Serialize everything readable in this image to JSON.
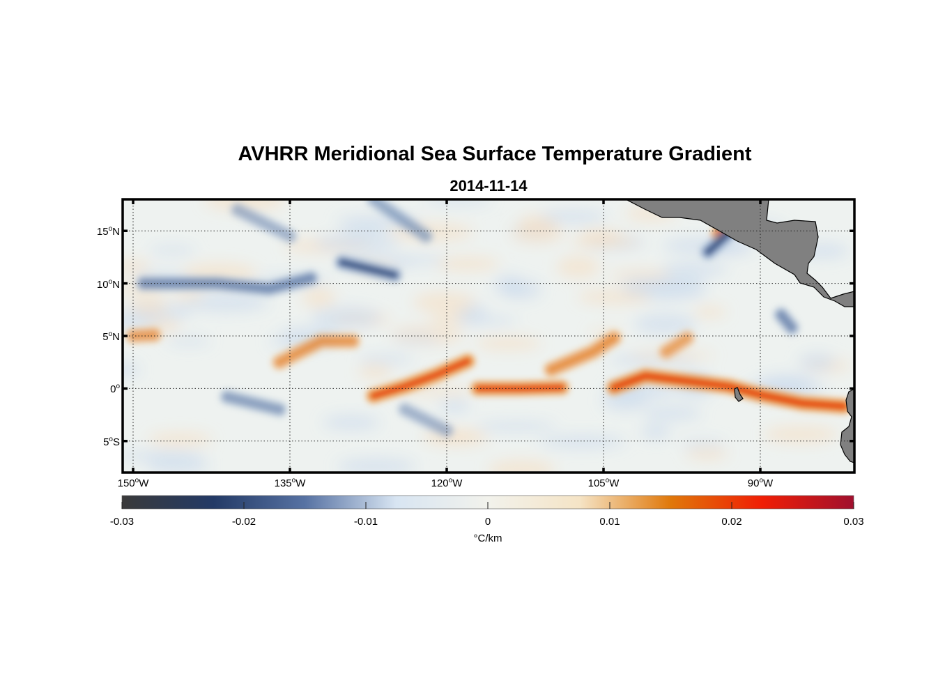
{
  "title": "AVHRR Meridional Sea Surface Temperature Gradient",
  "subtitle": "2014-11-14",
  "map": {
    "lon_range": [
      -151,
      -81
    ],
    "lat_range": [
      -8,
      18
    ],
    "grid": "dotted",
    "latitude_ticks": [
      {
        "value": 15,
        "num": "15",
        "deg": "o",
        "hem": "N"
      },
      {
        "value": 10,
        "num": "10",
        "deg": "o",
        "hem": "N"
      },
      {
        "value": 5,
        "num": "5",
        "deg": "o",
        "hem": "N"
      },
      {
        "value": 0,
        "num": "0",
        "deg": "o",
        "hem": ""
      },
      {
        "value": -5,
        "num": "5",
        "deg": "o",
        "hem": "S"
      }
    ],
    "longitude_ticks": [
      {
        "value": -150,
        "num": "150",
        "deg": "o",
        "hem": "W"
      },
      {
        "value": -135,
        "num": "135",
        "deg": "o",
        "hem": "W"
      },
      {
        "value": -120,
        "num": "120",
        "deg": "o",
        "hem": "W"
      },
      {
        "value": -105,
        "num": "105",
        "deg": "o",
        "hem": "W"
      },
      {
        "value": -90,
        "num": "90",
        "deg": "o",
        "hem": "W"
      }
    ],
    "land_color": "#808080",
    "features": [
      {
        "kind": "positive",
        "points": [
          [
            -127,
            -0.7
          ],
          [
            -124,
            0.2
          ],
          [
            -121,
            1.3
          ],
          [
            -118,
            2.6
          ]
        ],
        "strength": 0.9
      },
      {
        "kind": "positive",
        "points": [
          [
            -117,
            0
          ],
          [
            -113,
            0
          ],
          [
            -109,
            0.1
          ]
        ],
        "strength": 0.85
      },
      {
        "kind": "positive",
        "points": [
          [
            -104,
            0.1
          ],
          [
            -101,
            1.2
          ],
          [
            -97,
            0.7
          ],
          [
            -93,
            0.2
          ],
          [
            -90,
            -0.6
          ],
          [
            -86,
            -1.4
          ],
          [
            -82,
            -1.7
          ]
        ],
        "strength": 1.0
      },
      {
        "kind": "positive",
        "points": [
          [
            -136,
            2.5
          ],
          [
            -132,
            4.5
          ],
          [
            -129,
            4.5
          ]
        ],
        "strength": 0.6
      },
      {
        "kind": "positive",
        "points": [
          [
            -110,
            1.8
          ],
          [
            -106,
            3.5
          ],
          [
            -104,
            4.8
          ]
        ],
        "strength": 0.65
      },
      {
        "kind": "positive",
        "points": [
          [
            -150,
            5
          ],
          [
            -148,
            5.1
          ]
        ],
        "strength": 0.55
      },
      {
        "kind": "positive",
        "points": [
          [
            -99,
            3.5
          ],
          [
            -97,
            4.8
          ]
        ],
        "strength": 0.5
      },
      {
        "kind": "positive",
        "points": [
          [
            -94,
            14.7
          ],
          [
            -93,
            15.7
          ]
        ],
        "strength": 0.85
      },
      {
        "kind": "negative",
        "points": [
          [
            -149,
            10
          ],
          [
            -142,
            10
          ],
          [
            -137,
            9.5
          ],
          [
            -133,
            10.5
          ]
        ],
        "strength": 0.7
      },
      {
        "kind": "negative",
        "points": [
          [
            -130,
            12
          ],
          [
            -125,
            10.8
          ]
        ],
        "strength": 0.8
      },
      {
        "kind": "negative",
        "points": [
          [
            -141,
            -0.8
          ],
          [
            -136,
            -2
          ]
        ],
        "strength": 0.55
      },
      {
        "kind": "negative",
        "points": [
          [
            -124,
            -2
          ],
          [
            -120,
            -4
          ]
        ],
        "strength": 0.4
      },
      {
        "kind": "negative",
        "points": [
          [
            -93,
            14.8
          ],
          [
            -95,
            13
          ]
        ],
        "strength": 0.8
      },
      {
        "kind": "negative",
        "points": [
          [
            -88,
            7
          ],
          [
            -87,
            5.8
          ]
        ],
        "strength": 0.7
      },
      {
        "kind": "negative",
        "points": [
          [
            -140,
            17
          ],
          [
            -135,
            14.5
          ]
        ],
        "strength": 0.4
      },
      {
        "kind": "negative",
        "points": [
          [
            -127,
            18
          ],
          [
            -122,
            14.5
          ]
        ],
        "strength": 0.45
      }
    ]
  },
  "colorbar": {
    "min": -0.03,
    "max": 0.03,
    "stops": [
      "#3a3a3a",
      "#233a66",
      "#5772a3",
      "#d8e5f2",
      "#f2f2ec",
      "#f5e4c6",
      "#e0780a",
      "#f01e05",
      "#a0102e"
    ],
    "tick_labels": [
      "-0.03",
      "-0.02",
      "-0.01",
      "0",
      "0.01",
      "0.02",
      "0.03"
    ],
    "tick_values": [
      -0.03,
      -0.02,
      -0.01,
      0,
      0.01,
      0.02,
      0.03
    ],
    "units": "°C/km"
  }
}
